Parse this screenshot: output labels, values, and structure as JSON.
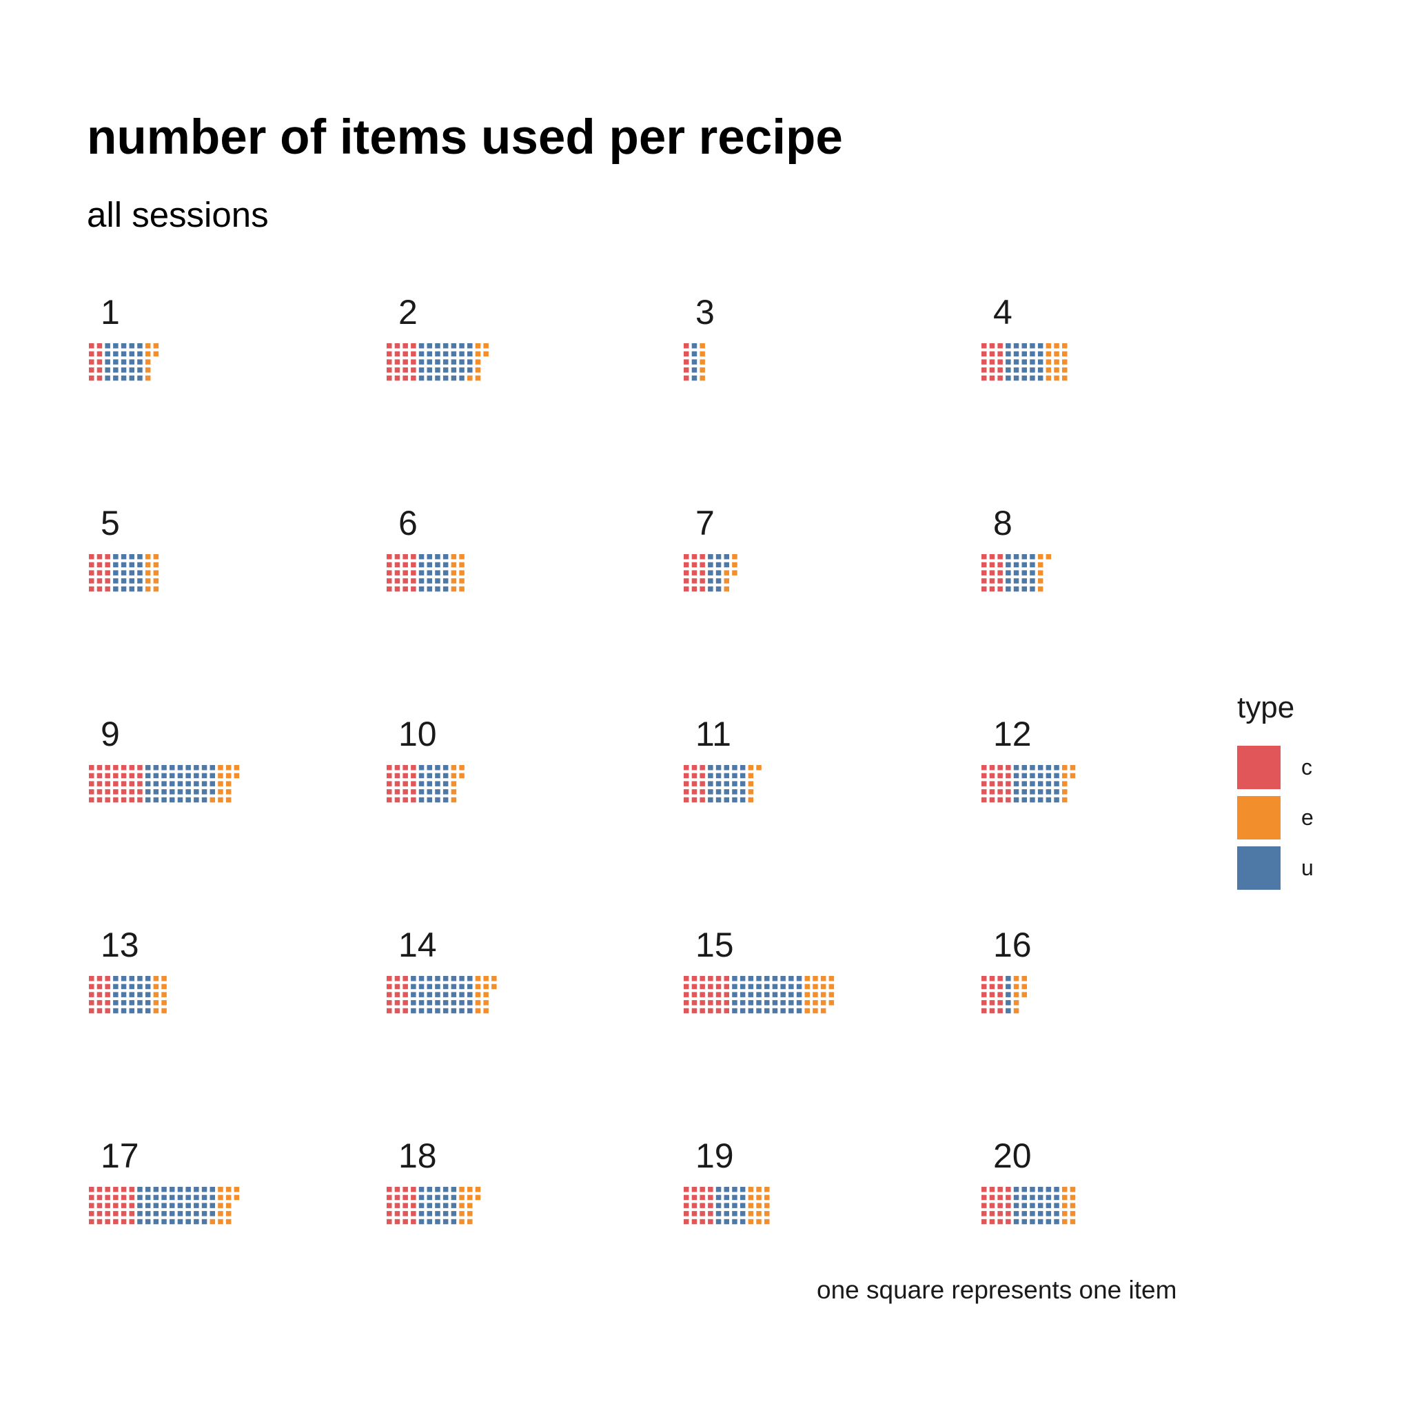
{
  "chart_data": {
    "type": "waffle",
    "title": "number of items used per recipe",
    "subtitle": "all sessions",
    "caption": "one square represents one item",
    "legend": {
      "title": "type",
      "position": "right",
      "entries": [
        {
          "key": "c",
          "color": "#E15759"
        },
        {
          "key": "e",
          "color": "#F28E2B"
        },
        {
          "key": "u",
          "color": "#4E79A7"
        }
      ]
    },
    "rows_per_column": 5,
    "recipes": [
      {
        "label": "1",
        "c": 10,
        "u": 25,
        "e": 7
      },
      {
        "label": "2",
        "c": 20,
        "u": 34,
        "e": 8
      },
      {
        "label": "3",
        "c": 5,
        "u": 5,
        "e": 5
      },
      {
        "label": "4",
        "c": 15,
        "u": 25,
        "e": 15
      },
      {
        "label": "5",
        "c": 15,
        "u": 20,
        "e": 10
      },
      {
        "label": "6",
        "c": 20,
        "u": 20,
        "e": 10
      },
      {
        "label": "7",
        "c": 15,
        "u": 12,
        "e": 6
      },
      {
        "label": "8",
        "c": 15,
        "u": 20,
        "e": 6
      },
      {
        "label": "9",
        "c": 35,
        "u": 44,
        "e": 13
      },
      {
        "label": "10",
        "c": 20,
        "u": 20,
        "e": 7
      },
      {
        "label": "11",
        "c": 15,
        "u": 25,
        "e": 6
      },
      {
        "label": "12",
        "c": 20,
        "u": 30,
        "e": 7
      },
      {
        "label": "13",
        "c": 15,
        "u": 25,
        "e": 10
      },
      {
        "label": "14",
        "c": 15,
        "u": 40,
        "e": 12
      },
      {
        "label": "15",
        "c": 30,
        "u": 45,
        "e": 19
      },
      {
        "label": "16",
        "c": 15,
        "u": 5,
        "e": 8
      },
      {
        "label": "17",
        "c": 30,
        "u": 49,
        "e": 13
      },
      {
        "label": "18",
        "c": 20,
        "u": 25,
        "e": 12
      },
      {
        "label": "19",
        "c": 20,
        "u": 20,
        "e": 15
      },
      {
        "label": "20",
        "c": 20,
        "u": 30,
        "e": 10
      }
    ]
  }
}
